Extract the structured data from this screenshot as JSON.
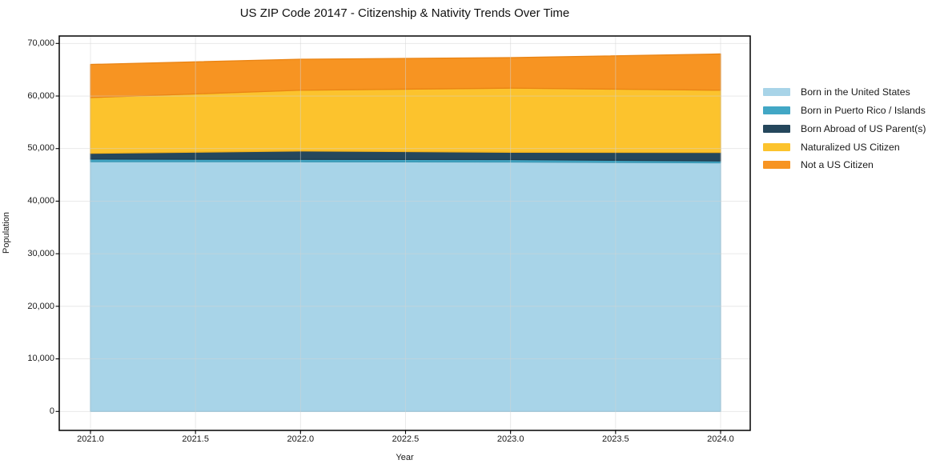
{
  "title": "US ZIP Code 20147 - Citizenship & Nativity Trends Over Time",
  "chart_data": {
    "type": "area",
    "stacked": true,
    "title": "US ZIP Code 20147 - Citizenship & Nativity Trends Over Time",
    "xlabel": "Year",
    "ylabel": "Population",
    "x": [
      2021,
      2022,
      2023,
      2024
    ],
    "xlim": [
      2020.85,
      2024.14
    ],
    "ylim": [
      0,
      70000
    ],
    "grid": true,
    "legend_position": "right-outside",
    "xticks": {
      "values": [
        2021.0,
        2021.5,
        2022.0,
        2022.5,
        2023.0,
        2023.5,
        2024.0
      ],
      "labels": [
        "2021.0",
        "2021.5",
        "2022.0",
        "2022.5",
        "2023.0",
        "2023.5",
        "2024.0"
      ]
    },
    "yticks": {
      "values": [
        0,
        10000,
        20000,
        30000,
        40000,
        50000,
        60000,
        70000
      ],
      "labels": [
        "0",
        "10,000",
        "20,000",
        "30,000",
        "40,000",
        "50,000",
        "60,000",
        "70,000"
      ]
    },
    "series": [
      {
        "name": "Born in the United States",
        "color": "#a8d4e8",
        "edge": "#8cc3dc",
        "values": [
          47500,
          47500,
          47450,
          47300
        ]
      },
      {
        "name": "Born in Puerto Rico / Islands",
        "color": "#42a7c5",
        "edge": "#3b97b3",
        "values": [
          500,
          450,
          450,
          350
        ]
      },
      {
        "name": "Born Abroad of US Parent(s)",
        "color": "#25475c",
        "edge": "#1e3c4e",
        "values": [
          1100,
          1600,
          1400,
          1600
        ]
      },
      {
        "name": "Naturalized US Citizen",
        "color": "#fcc32d",
        "edge": "#f0b01c",
        "values": [
          10600,
          11550,
          12200,
          11850
        ]
      },
      {
        "name": "Not a US Citizen",
        "color": "#f79422",
        "edge": "#ea8414",
        "values": [
          6300,
          5900,
          5800,
          6900
        ]
      }
    ]
  }
}
